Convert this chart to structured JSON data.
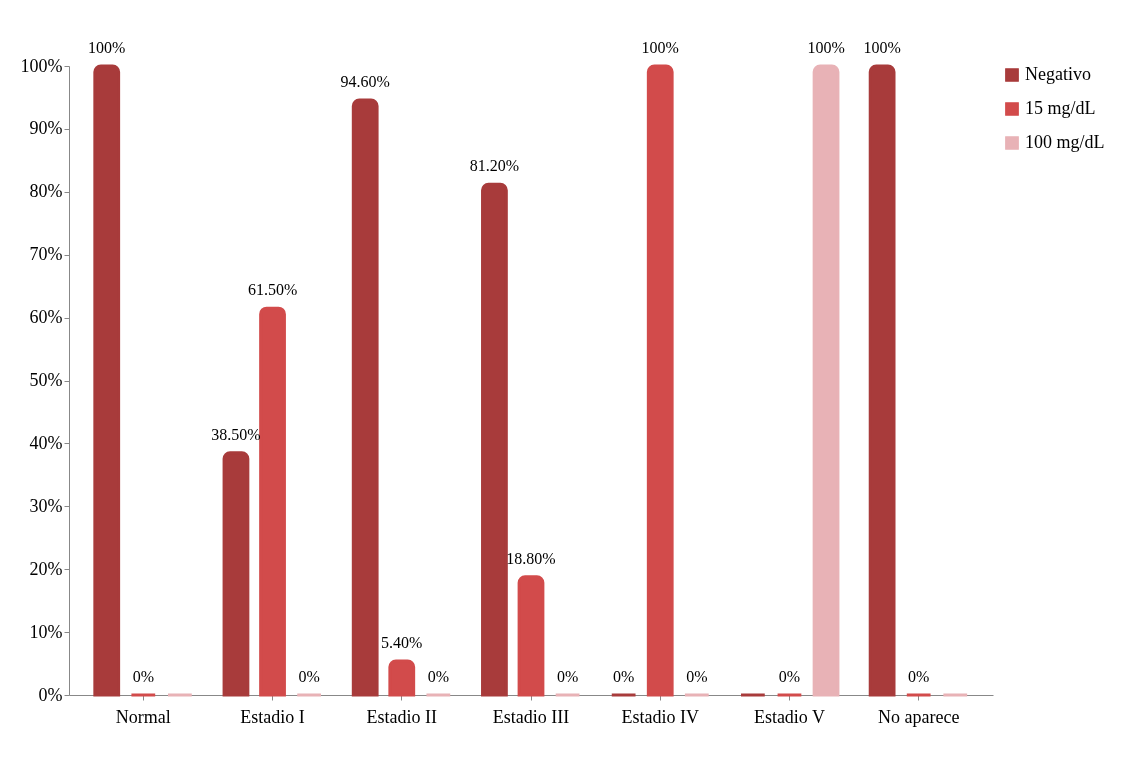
{
  "chart_data": {
    "type": "bar",
    "categories": [
      "Normal",
      "Estadio I",
      "Estadio II",
      "Estadio III",
      "Estadio IV",
      "Estadio V",
      "No aparece"
    ],
    "series": [
      {
        "name": "Negativo",
        "color": "#a83b3b",
        "values": [
          100,
          38.5,
          94.6,
          81.2,
          0,
          0,
          100
        ],
        "value_labels": [
          "100%",
          "38.50%",
          "94.60%",
          "81.20%",
          "0%",
          null,
          "100%"
        ]
      },
      {
        "name": "15 mg/dL",
        "color": "#d24b4b",
        "values": [
          0,
          61.5,
          5.4,
          18.8,
          100,
          0,
          0
        ],
        "value_labels": [
          "0%",
          "61.50%",
          "5.40%",
          "18.80%",
          "100%",
          "0%",
          "0%"
        ]
      },
      {
        "name": "100 mg/dL",
        "color": "#e8b2b6",
        "values": [
          0,
          0,
          0,
          0,
          0,
          100,
          0
        ],
        "value_labels": [
          null,
          "0%",
          "0%",
          "0%",
          "0%",
          "100%",
          null
        ]
      }
    ],
    "ylim": [
      0,
      100
    ],
    "yticks": [
      {
        "value": 0,
        "label": "0%"
      },
      {
        "value": 10,
        "label": "10%"
      },
      {
        "value": 20,
        "label": "20%"
      },
      {
        "value": 30,
        "label": "30%"
      },
      {
        "value": 40,
        "label": "40%"
      },
      {
        "value": 50,
        "label": "50%"
      },
      {
        "value": 60,
        "label": "60%"
      },
      {
        "value": 70,
        "label": "70%"
      },
      {
        "value": 80,
        "label": "80%"
      },
      {
        "value": 90,
        "label": "90%"
      },
      {
        "value": 100,
        "label": "100%"
      }
    ],
    "grid": false,
    "legend": "right"
  }
}
